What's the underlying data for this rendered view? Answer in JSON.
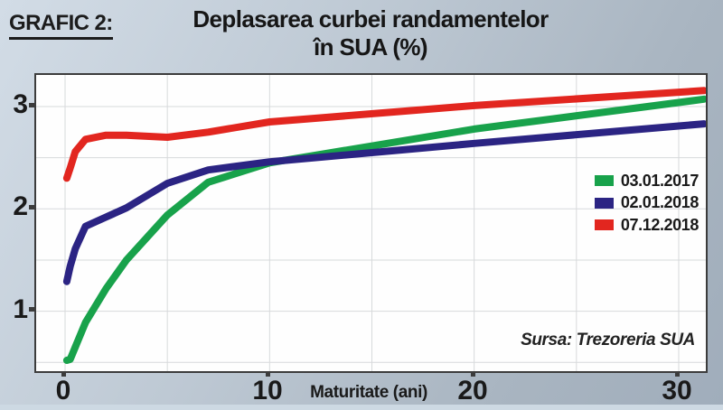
{
  "header": {
    "grafic_label": "GRAFIC 2:",
    "title_line1": "Deplasarea curbei randamentelor",
    "title_line2": "în SUA (%)"
  },
  "chart_data": {
    "type": "line",
    "title": "Deplasarea curbei randamentelor în SUA (%)",
    "xlabel": "Maturitate (ani)",
    "ylabel": "",
    "x": [
      0.083,
      0.25,
      0.5,
      1,
      2,
      3,
      5,
      7,
      10,
      20,
      30
    ],
    "series": [
      {
        "name": "03.01.2017",
        "color": "#18a24b",
        "values": [
          0.52,
          0.53,
          0.65,
          0.89,
          1.22,
          1.5,
          1.94,
          2.26,
          2.45,
          2.78,
          3.04
        ]
      },
      {
        "name": "02.01.2018",
        "color": "#2b2483",
        "values": [
          1.29,
          1.44,
          1.61,
          1.83,
          1.92,
          2.01,
          2.25,
          2.38,
          2.46,
          2.64,
          2.81
        ]
      },
      {
        "name": "07.12.2018",
        "color": "#e2261f",
        "values": [
          2.3,
          2.4,
          2.56,
          2.68,
          2.72,
          2.72,
          2.7,
          2.75,
          2.85,
          3.01,
          3.14
        ]
      }
    ],
    "x_tick_labels": [
      "0",
      "10",
      "20",
      "30"
    ],
    "x_tick_years": [
      0,
      10,
      20,
      30
    ],
    "y_tick_labels": [
      "1",
      "2",
      "3"
    ],
    "y_tick_values": [
      1,
      2,
      3
    ],
    "xlim": [
      0,
      31.4
    ],
    "ylim": [
      0.38,
      3.28
    ],
    "x_grid_step_years": 5,
    "y_grid_step": 0.5,
    "grid": true,
    "legend_position": "right-inside",
    "gridline_color": "#d7d9db",
    "source": "Sursa: Trezoreria SUA"
  }
}
